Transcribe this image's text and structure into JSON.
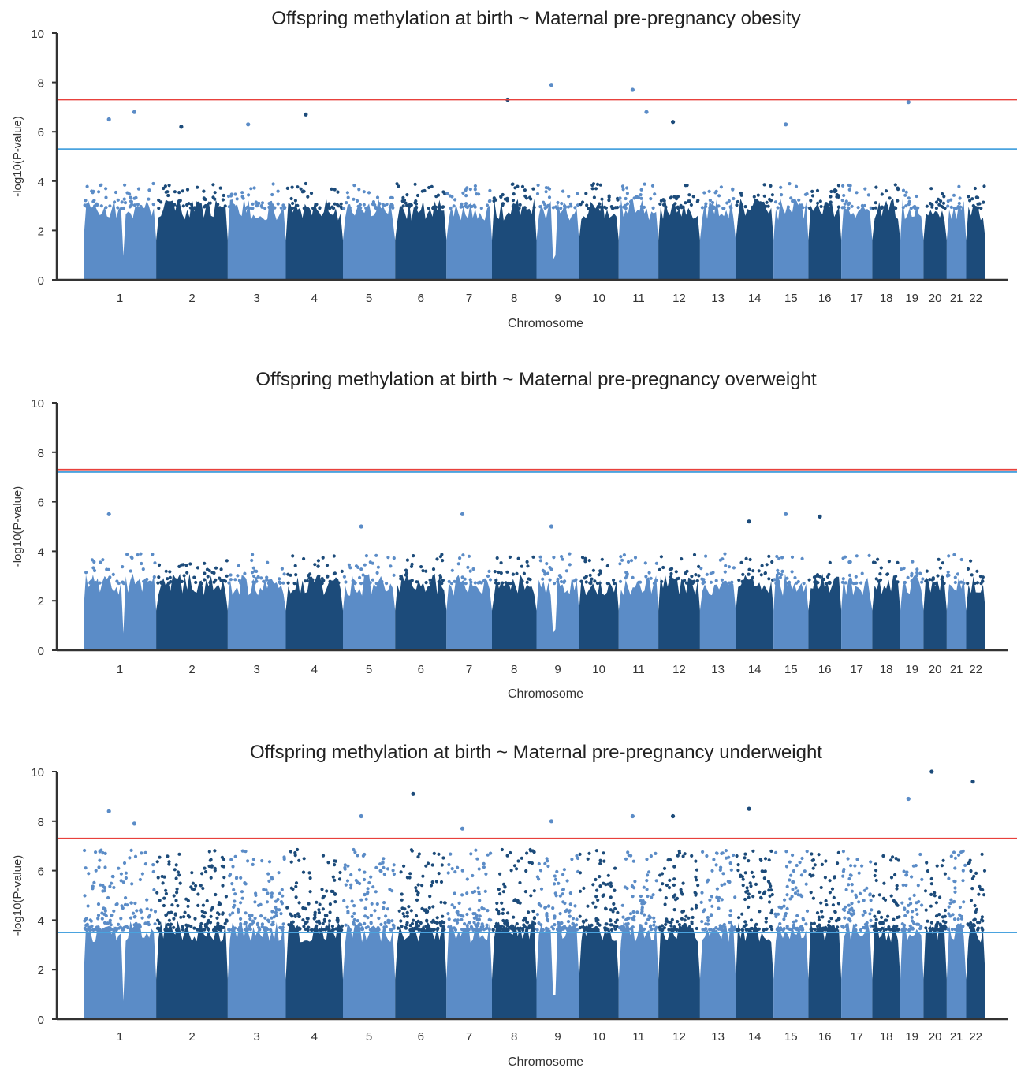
{
  "chart_data": [
    {
      "type": "scatter",
      "title": "Offspring methylation at birth ~ Maternal pre-pregnancy obesity",
      "xlabel": "Chromosome",
      "ylabel": "-log10(P-value)",
      "ylim": [
        0,
        10
      ],
      "y_ticks": [
        0,
        2,
        4,
        6,
        8,
        10
      ],
      "x_tick_labels": [
        "1",
        "2",
        "3",
        "4",
        "5",
        "6",
        "7",
        "8",
        "9",
        "10",
        "11",
        "12",
        "13",
        "14",
        "15",
        "16",
        "17",
        "18",
        "19",
        "20",
        "21",
        "22"
      ],
      "thresholds": [
        {
          "value": 7.3,
          "color": "#e8413c"
        },
        {
          "value": 5.3,
          "color": "#4aa3df"
        }
      ],
      "colors": {
        "light": "#5b8cc7",
        "dark": "#1c4b7a"
      },
      "notable_points": [
        {
          "chromosome": "1",
          "p": 6.5
        },
        {
          "chromosome": "1",
          "p": 6.8
        },
        {
          "chromosome": "2",
          "p": 6.2
        },
        {
          "chromosome": "3",
          "p": 6.3
        },
        {
          "chromosome": "4",
          "p": 6.7
        },
        {
          "chromosome": "8",
          "p": 7.3
        },
        {
          "chromosome": "9",
          "p": 7.9
        },
        {
          "chromosome": "11",
          "p": 7.7
        },
        {
          "chromosome": "11",
          "p": 6.8
        },
        {
          "chromosome": "12",
          "p": 6.4
        },
        {
          "chromosome": "15",
          "p": 6.3
        },
        {
          "chromosome": "19",
          "p": 7.2
        }
      ]
    },
    {
      "type": "scatter",
      "title": "Offspring methylation at birth ~ Maternal pre-pregnancy overweight",
      "xlabel": "Chromosome",
      "ylabel": "-log10(P-value)",
      "ylim": [
        0,
        10
      ],
      "y_ticks": [
        0,
        2,
        4,
        6,
        8,
        10
      ],
      "x_tick_labels": [
        "1",
        "2",
        "3",
        "4",
        "5",
        "6",
        "7",
        "8",
        "9",
        "10",
        "11",
        "12",
        "13",
        "14",
        "15",
        "16",
        "17",
        "18",
        "19",
        "20",
        "21",
        "22"
      ],
      "thresholds": [
        {
          "value": 7.3,
          "color": "#e8413c"
        },
        {
          "value": 7.2,
          "color": "#4aa3df"
        }
      ],
      "colors": {
        "light": "#5b8cc7",
        "dark": "#1c4b7a"
      },
      "notable_points": [
        {
          "chromosome": "1",
          "p": 5.5
        },
        {
          "chromosome": "5",
          "p": 5.0
        },
        {
          "chromosome": "7",
          "p": 5.5
        },
        {
          "chromosome": "9",
          "p": 5.0
        },
        {
          "chromosome": "14",
          "p": 5.2
        },
        {
          "chromosome": "15",
          "p": 5.5
        },
        {
          "chromosome": "16",
          "p": 5.4
        }
      ]
    },
    {
      "type": "scatter",
      "title": "Offspring methylation at birth ~ Maternal pre-pregnancy underweight",
      "xlabel": "Chromosome",
      "ylabel": "-log10(P-value)",
      "ylim": [
        0,
        10
      ],
      "y_ticks": [
        0,
        2,
        4,
        6,
        8,
        10
      ],
      "x_tick_labels": [
        "1",
        "2",
        "3",
        "4",
        "5",
        "6",
        "7",
        "8",
        "9",
        "10",
        "11",
        "12",
        "13",
        "14",
        "15",
        "16",
        "17",
        "18",
        "19",
        "20",
        "21",
        "22"
      ],
      "thresholds": [
        {
          "value": 7.3,
          "color": "#e8413c"
        },
        {
          "value": 3.5,
          "color": "#4aa3df"
        }
      ],
      "colors": {
        "light": "#5b8cc7",
        "dark": "#1c4b7a"
      },
      "notable_points": [
        {
          "chromosome": "1",
          "p": 8.4
        },
        {
          "chromosome": "1",
          "p": 7.9
        },
        {
          "chromosome": "5",
          "p": 8.2
        },
        {
          "chromosome": "6",
          "p": 9.1
        },
        {
          "chromosome": "7",
          "p": 7.7
        },
        {
          "chromosome": "9",
          "p": 8.0
        },
        {
          "chromosome": "11",
          "p": 8.2
        },
        {
          "chromosome": "12",
          "p": 8.2
        },
        {
          "chromosome": "14",
          "p": 8.5
        },
        {
          "chromosome": "19",
          "p": 8.9
        },
        {
          "chromosome": "20",
          "p": 10.0
        },
        {
          "chromosome": "22",
          "p": 9.6
        }
      ]
    }
  ]
}
